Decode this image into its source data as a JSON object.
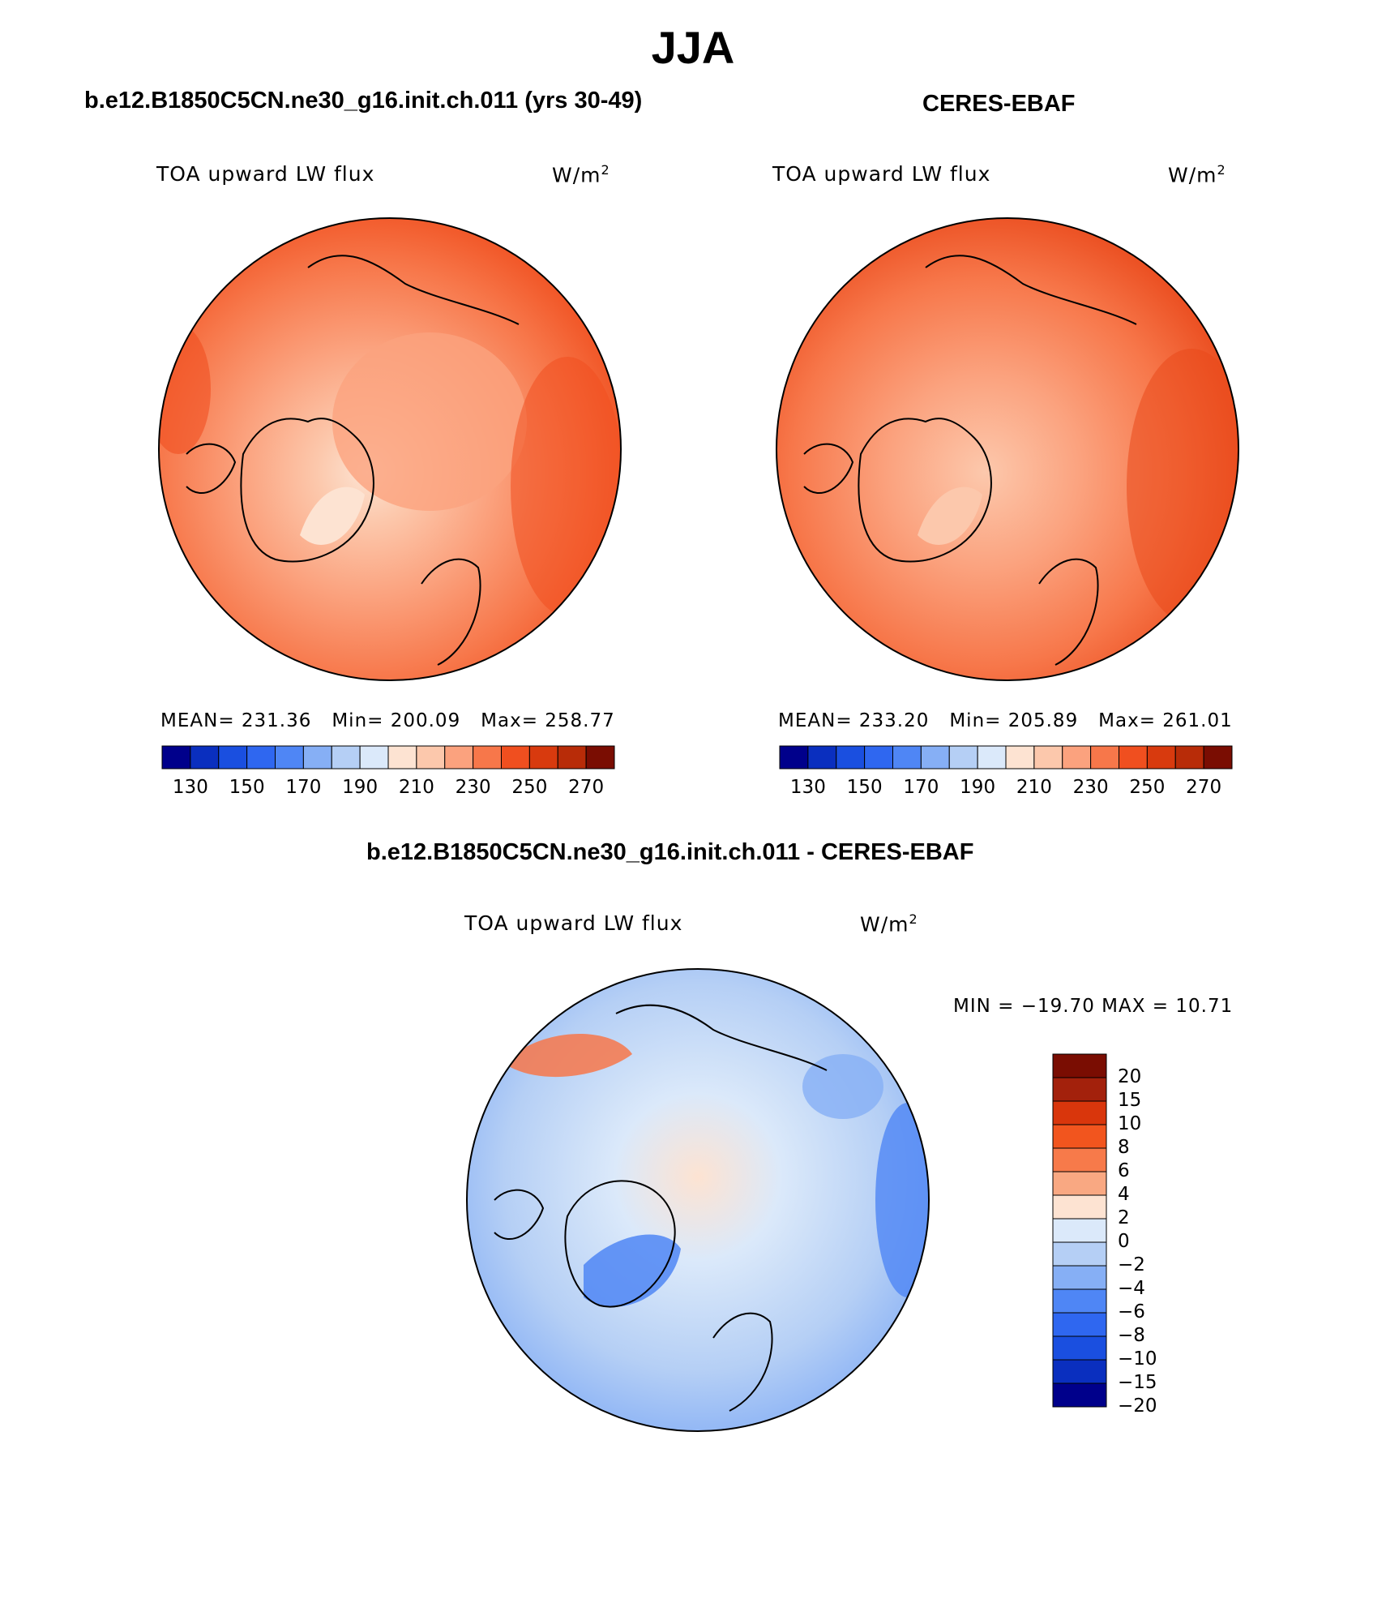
{
  "title": "JJA",
  "panels": {
    "model": {
      "case_title": "b.e12.B1850C5CN.ne30_g16.init.ch.011 (yrs 30-49)",
      "variable": "TOA upward LW flux",
      "units_base": "W/m",
      "units_exp": "2",
      "stats": {
        "mean": "MEAN= 231.36",
        "min": "Min= 200.09",
        "max": "Max= 258.77"
      },
      "colorbar_ticks": [
        "130",
        "150",
        "170",
        "190",
        "210",
        "230",
        "250",
        "270"
      ]
    },
    "obs": {
      "case_title": "CERES-EBAF",
      "variable": "TOA upward LW flux",
      "units_base": "W/m",
      "units_exp": "2",
      "stats": {
        "mean": "MEAN= 233.20",
        "min": "Min= 205.89",
        "max": "Max= 261.01"
      },
      "colorbar_ticks": [
        "130",
        "150",
        "170",
        "190",
        "210",
        "230",
        "250",
        "270"
      ]
    },
    "diff": {
      "case_title": "b.e12.B1850C5CN.ne30_g16.init.ch.011 - CERES-EBAF",
      "variable": "TOA upward LW flux",
      "units_base": "W/m",
      "units_exp": "2",
      "stats": "MIN = −19.70 MAX =  10.71",
      "colorbar_labels": [
        "20",
        "15",
        "10",
        "8",
        "6",
        "4",
        "2",
        "0",
        "−2",
        "−4",
        "−6",
        "−8",
        "−10",
        "−15",
        "−20"
      ]
    }
  },
  "colors": {
    "abs_scale": [
      "#00008b",
      "#0a2fbf",
      "#1a4fe0",
      "#2f67f0",
      "#4f86f5",
      "#86aff5",
      "#b5cff5",
      "#dbe9fa",
      "#fde3d2",
      "#fcc8ac",
      "#fba27e",
      "#f7774a",
      "#f04f1f",
      "#d83a0e",
      "#b82c08",
      "#7a0d02"
    ],
    "diff_scale": [
      "#7a0d02",
      "#a3210c",
      "#d9360c",
      "#f2551e",
      "#f77a4a",
      "#f9a882",
      "#fde3d2",
      "#dbe9fa",
      "#b5cff5",
      "#86aff5",
      "#4f86f5",
      "#2f67f0",
      "#1a4fe0",
      "#0a2fbf",
      "#00008b"
    ]
  }
}
